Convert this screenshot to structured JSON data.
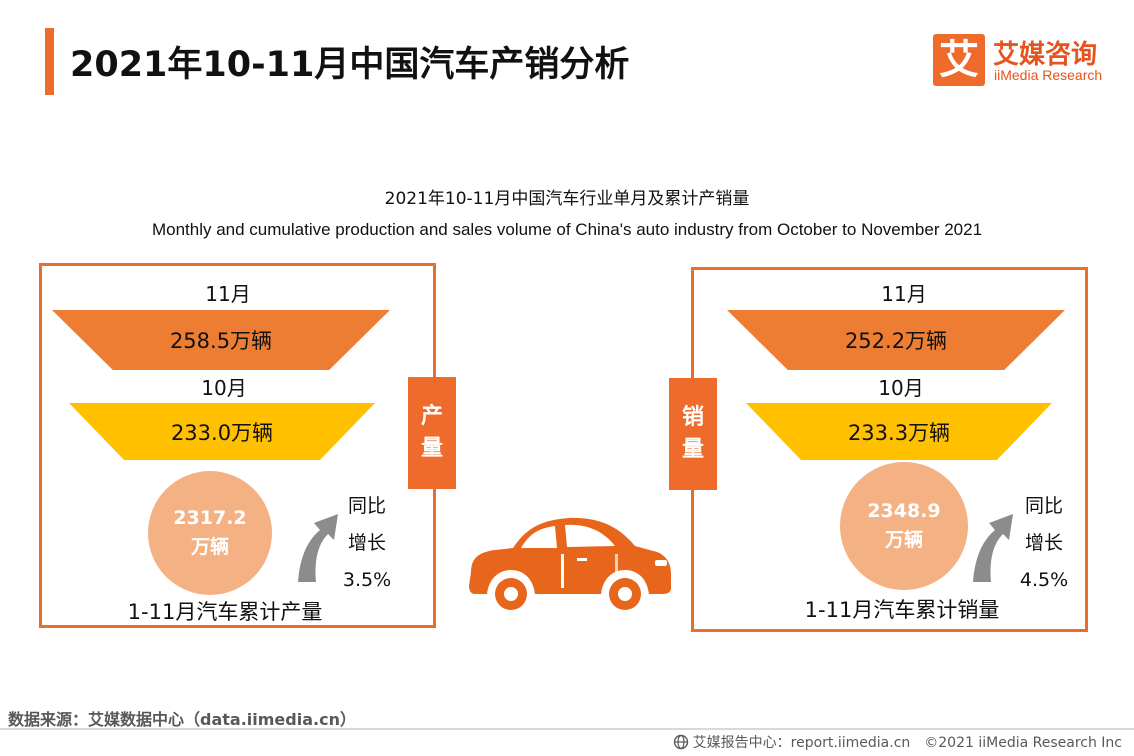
{
  "header": {
    "title": "2021年10-11月中国汽车产销分析",
    "logo_char": "艾",
    "logo_name": "艾媒咨询",
    "logo_en": "iiMedia Research"
  },
  "chart_data": {
    "type": "infographic",
    "title": "2021年10-11月中国汽车行业单月及累计产销量",
    "subtitle": "Monthly and cumulative production and sales volume of China's auto industry from October to November 2021",
    "unit": "万辆",
    "panels": [
      {
        "name": "产量",
        "tag_chars": [
          "产",
          "量"
        ],
        "months": [
          {
            "label": "11月",
            "value": 258.5,
            "display": "258.5万辆"
          },
          {
            "label": "10月",
            "value": 233.0,
            "display": "233.0万辆"
          }
        ],
        "cumulative": {
          "value": 2317.2,
          "display": "2317.2",
          "unit": "万辆",
          "label": "1-11月汽车累计产量"
        },
        "yoy": {
          "line1": "同比",
          "line2": "增长",
          "value": "3.5%"
        }
      },
      {
        "name": "销量",
        "tag_chars": [
          "销",
          "量"
        ],
        "months": [
          {
            "label": "11月",
            "value": 252.2,
            "display": "252.2万辆"
          },
          {
            "label": "10月",
            "value": 233.3,
            "display": "233.3万辆"
          }
        ],
        "cumulative": {
          "value": 2348.9,
          "display": "2348.9",
          "unit": "万辆",
          "label": "1-11月汽车累计销量"
        },
        "yoy": {
          "line1": "同比",
          "line2": "增长",
          "value": "4.5%"
        }
      }
    ]
  },
  "footer": {
    "source": "数据来源：艾媒数据中心（data.iimedia.cn）",
    "report": "艾媒报告中心：report.iimedia.cn　©2021  iiMedia Research  Inc"
  },
  "colors": {
    "accent": "#ef6b2b",
    "trap_nov": "#ee7d34",
    "trap_oct": "#ffc000",
    "circle": "#f4b183",
    "car": "#e8651c",
    "arrow": "#8c8c8c"
  },
  "icons": [
    "car-icon",
    "up-arrow-icon",
    "globe-icon"
  ]
}
